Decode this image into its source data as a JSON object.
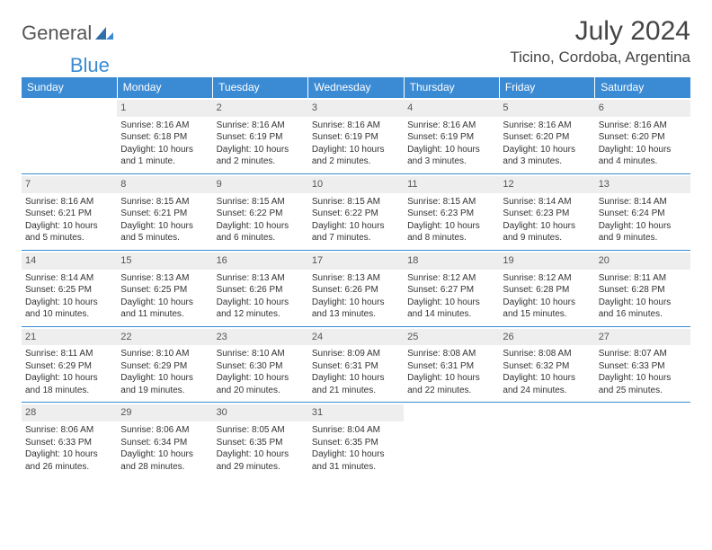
{
  "brand": {
    "word1": "General",
    "word2": "Blue"
  },
  "title": "July 2024",
  "location": "Ticino, Cordoba, Argentina",
  "colors": {
    "header_bg": "#3b8bd4",
    "header_text": "#ffffff",
    "daynum_bg": "#eeeeee",
    "row_border": "#3b8bd4",
    "body_text": "#333333",
    "logo_gray": "#555555",
    "logo_blue": "#3b8bd4"
  },
  "weekdays": [
    "Sunday",
    "Monday",
    "Tuesday",
    "Wednesday",
    "Thursday",
    "Friday",
    "Saturday"
  ],
  "weeks": [
    [
      null,
      {
        "n": "1",
        "sr": "Sunrise: 8:16 AM",
        "ss": "Sunset: 6:18 PM",
        "dl": "Daylight: 10 hours and 1 minute."
      },
      {
        "n": "2",
        "sr": "Sunrise: 8:16 AM",
        "ss": "Sunset: 6:19 PM",
        "dl": "Daylight: 10 hours and 2 minutes."
      },
      {
        "n": "3",
        "sr": "Sunrise: 8:16 AM",
        "ss": "Sunset: 6:19 PM",
        "dl": "Daylight: 10 hours and 2 minutes."
      },
      {
        "n": "4",
        "sr": "Sunrise: 8:16 AM",
        "ss": "Sunset: 6:19 PM",
        "dl": "Daylight: 10 hours and 3 minutes."
      },
      {
        "n": "5",
        "sr": "Sunrise: 8:16 AM",
        "ss": "Sunset: 6:20 PM",
        "dl": "Daylight: 10 hours and 3 minutes."
      },
      {
        "n": "6",
        "sr": "Sunrise: 8:16 AM",
        "ss": "Sunset: 6:20 PM",
        "dl": "Daylight: 10 hours and 4 minutes."
      }
    ],
    [
      {
        "n": "7",
        "sr": "Sunrise: 8:16 AM",
        "ss": "Sunset: 6:21 PM",
        "dl": "Daylight: 10 hours and 5 minutes."
      },
      {
        "n": "8",
        "sr": "Sunrise: 8:15 AM",
        "ss": "Sunset: 6:21 PM",
        "dl": "Daylight: 10 hours and 5 minutes."
      },
      {
        "n": "9",
        "sr": "Sunrise: 8:15 AM",
        "ss": "Sunset: 6:22 PM",
        "dl": "Daylight: 10 hours and 6 minutes."
      },
      {
        "n": "10",
        "sr": "Sunrise: 8:15 AM",
        "ss": "Sunset: 6:22 PM",
        "dl": "Daylight: 10 hours and 7 minutes."
      },
      {
        "n": "11",
        "sr": "Sunrise: 8:15 AM",
        "ss": "Sunset: 6:23 PM",
        "dl": "Daylight: 10 hours and 8 minutes."
      },
      {
        "n": "12",
        "sr": "Sunrise: 8:14 AM",
        "ss": "Sunset: 6:23 PM",
        "dl": "Daylight: 10 hours and 9 minutes."
      },
      {
        "n": "13",
        "sr": "Sunrise: 8:14 AM",
        "ss": "Sunset: 6:24 PM",
        "dl": "Daylight: 10 hours and 9 minutes."
      }
    ],
    [
      {
        "n": "14",
        "sr": "Sunrise: 8:14 AM",
        "ss": "Sunset: 6:25 PM",
        "dl": "Daylight: 10 hours and 10 minutes."
      },
      {
        "n": "15",
        "sr": "Sunrise: 8:13 AM",
        "ss": "Sunset: 6:25 PM",
        "dl": "Daylight: 10 hours and 11 minutes."
      },
      {
        "n": "16",
        "sr": "Sunrise: 8:13 AM",
        "ss": "Sunset: 6:26 PM",
        "dl": "Daylight: 10 hours and 12 minutes."
      },
      {
        "n": "17",
        "sr": "Sunrise: 8:13 AM",
        "ss": "Sunset: 6:26 PM",
        "dl": "Daylight: 10 hours and 13 minutes."
      },
      {
        "n": "18",
        "sr": "Sunrise: 8:12 AM",
        "ss": "Sunset: 6:27 PM",
        "dl": "Daylight: 10 hours and 14 minutes."
      },
      {
        "n": "19",
        "sr": "Sunrise: 8:12 AM",
        "ss": "Sunset: 6:28 PM",
        "dl": "Daylight: 10 hours and 15 minutes."
      },
      {
        "n": "20",
        "sr": "Sunrise: 8:11 AM",
        "ss": "Sunset: 6:28 PM",
        "dl": "Daylight: 10 hours and 16 minutes."
      }
    ],
    [
      {
        "n": "21",
        "sr": "Sunrise: 8:11 AM",
        "ss": "Sunset: 6:29 PM",
        "dl": "Daylight: 10 hours and 18 minutes."
      },
      {
        "n": "22",
        "sr": "Sunrise: 8:10 AM",
        "ss": "Sunset: 6:29 PM",
        "dl": "Daylight: 10 hours and 19 minutes."
      },
      {
        "n": "23",
        "sr": "Sunrise: 8:10 AM",
        "ss": "Sunset: 6:30 PM",
        "dl": "Daylight: 10 hours and 20 minutes."
      },
      {
        "n": "24",
        "sr": "Sunrise: 8:09 AM",
        "ss": "Sunset: 6:31 PM",
        "dl": "Daylight: 10 hours and 21 minutes."
      },
      {
        "n": "25",
        "sr": "Sunrise: 8:08 AM",
        "ss": "Sunset: 6:31 PM",
        "dl": "Daylight: 10 hours and 22 minutes."
      },
      {
        "n": "26",
        "sr": "Sunrise: 8:08 AM",
        "ss": "Sunset: 6:32 PM",
        "dl": "Daylight: 10 hours and 24 minutes."
      },
      {
        "n": "27",
        "sr": "Sunrise: 8:07 AM",
        "ss": "Sunset: 6:33 PM",
        "dl": "Daylight: 10 hours and 25 minutes."
      }
    ],
    [
      {
        "n": "28",
        "sr": "Sunrise: 8:06 AM",
        "ss": "Sunset: 6:33 PM",
        "dl": "Daylight: 10 hours and 26 minutes."
      },
      {
        "n": "29",
        "sr": "Sunrise: 8:06 AM",
        "ss": "Sunset: 6:34 PM",
        "dl": "Daylight: 10 hours and 28 minutes."
      },
      {
        "n": "30",
        "sr": "Sunrise: 8:05 AM",
        "ss": "Sunset: 6:35 PM",
        "dl": "Daylight: 10 hours and 29 minutes."
      },
      {
        "n": "31",
        "sr": "Sunrise: 8:04 AM",
        "ss": "Sunset: 6:35 PM",
        "dl": "Daylight: 10 hours and 31 minutes."
      },
      null,
      null,
      null
    ]
  ]
}
